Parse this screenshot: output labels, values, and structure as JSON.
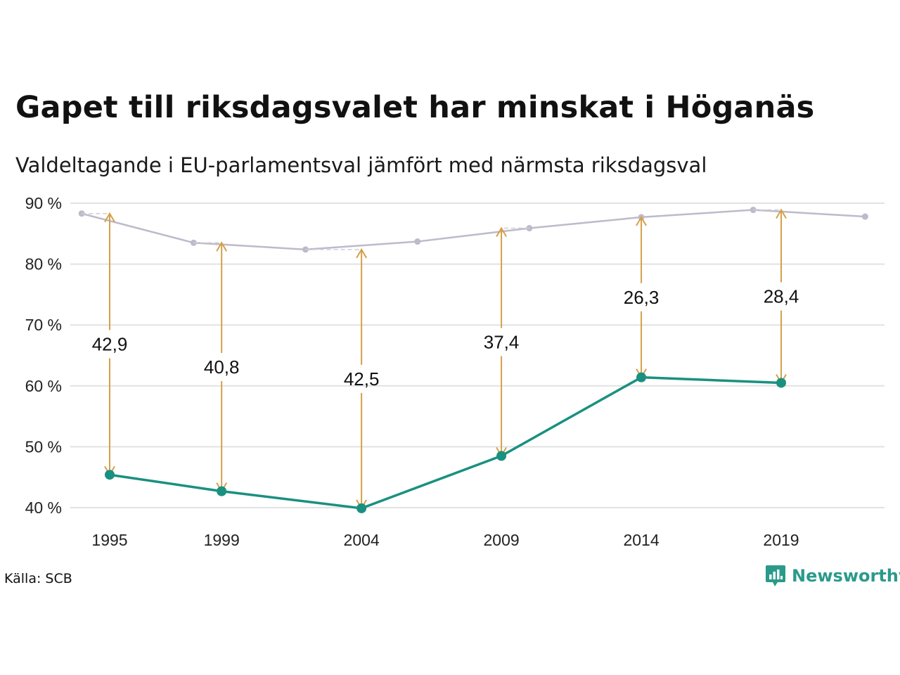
{
  "title": "Gapet till riksdagsvalet har minskat i Höganäs",
  "subtitle": "Valdeltagande i EU-parlamentsval jämfört med närmsta riksdagsval",
  "source": "Källa: SCB",
  "brand": "Newsworthy",
  "colors": {
    "eu_line": "#1a9080",
    "riksdag_line": "#bdbacb",
    "gap_arrow": "#d4a04a",
    "grid": "#e2e2e2"
  },
  "chart_data": {
    "type": "line",
    "ylim": [
      40,
      90
    ],
    "yticks": [
      40,
      50,
      60,
      70,
      80,
      90
    ],
    "ytick_labels": [
      "40 %",
      "50 %",
      "60 %",
      "70 %",
      "80 %",
      "90 %"
    ],
    "xlim": [
      1993.9,
      2023
    ],
    "xticks": [
      1995,
      1999,
      2004,
      2009,
      2014,
      2019
    ],
    "xtick_labels": [
      "1995",
      "1999",
      "2004",
      "2009",
      "2014",
      "2019"
    ],
    "grid": "horizontal",
    "series": [
      {
        "key": "eu",
        "x": [
          1995,
          1999,
          2004,
          2009,
          2014,
          2019
        ],
        "y": [
          45.4,
          42.7,
          39.9,
          48.5,
          61.4,
          60.5
        ]
      },
      {
        "key": "riksdag",
        "x": [
          1994,
          1998,
          2002,
          2006,
          2010,
          2014,
          2018,
          2022
        ],
        "y": [
          88.3,
          83.5,
          82.4,
          83.7,
          85.9,
          87.7,
          88.9,
          87.8
        ]
      }
    ],
    "gaps": [
      {
        "x": 1995,
        "top": 88.3,
        "bottom": 45.4,
        "label": "42,9"
      },
      {
        "x": 1999,
        "top": 83.5,
        "bottom": 42.7,
        "label": "40,8"
      },
      {
        "x": 2004,
        "top": 82.4,
        "bottom": 39.9,
        "label": "42,5"
      },
      {
        "x": 2009,
        "top": 85.9,
        "bottom": 48.5,
        "label": "37,4"
      },
      {
        "x": 2014,
        "top": 87.7,
        "bottom": 61.4,
        "label": "26,3"
      },
      {
        "x": 2019,
        "top": 88.9,
        "bottom": 60.5,
        "label": "28,4"
      }
    ]
  }
}
